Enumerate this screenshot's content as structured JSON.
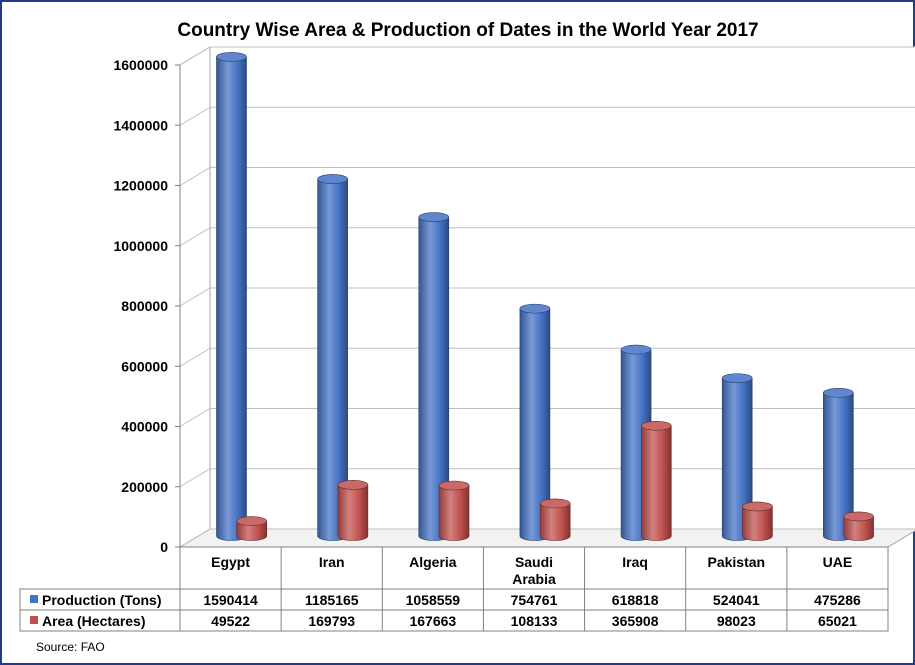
{
  "chart_data": {
    "type": "bar",
    "title": "Country Wise Area & Production of Dates in the World Year 2017",
    "categories": [
      "Egypt",
      "Iran",
      "Algeria",
      "Saudi Arabia",
      "Iraq",
      "Pakistan",
      "UAE"
    ],
    "category_lines": [
      [
        "Egypt"
      ],
      [
        "Iran"
      ],
      [
        "Algeria"
      ],
      [
        "Saudi",
        "Arabia"
      ],
      [
        "Iraq"
      ],
      [
        "Pakistan"
      ],
      [
        "UAE"
      ]
    ],
    "series": [
      {
        "name": "Production (Tons)",
        "color": "#4472c4",
        "values": [
          1590414,
          1185165,
          1058559,
          754761,
          618818,
          524041,
          475286
        ]
      },
      {
        "name": "Area (Hectares)",
        "color": "#c0504d",
        "values": [
          49522,
          169793,
          167663,
          108133,
          365908,
          98023,
          65021
        ]
      }
    ],
    "ylim": [
      0,
      1600000
    ],
    "yticks": [
      0,
      200000,
      400000,
      600000,
      800000,
      1000000,
      1200000,
      1400000,
      1600000
    ],
    "grid": true,
    "legend": "data-table",
    "three_d": true
  },
  "footer": {
    "source": "Source: FAO"
  }
}
